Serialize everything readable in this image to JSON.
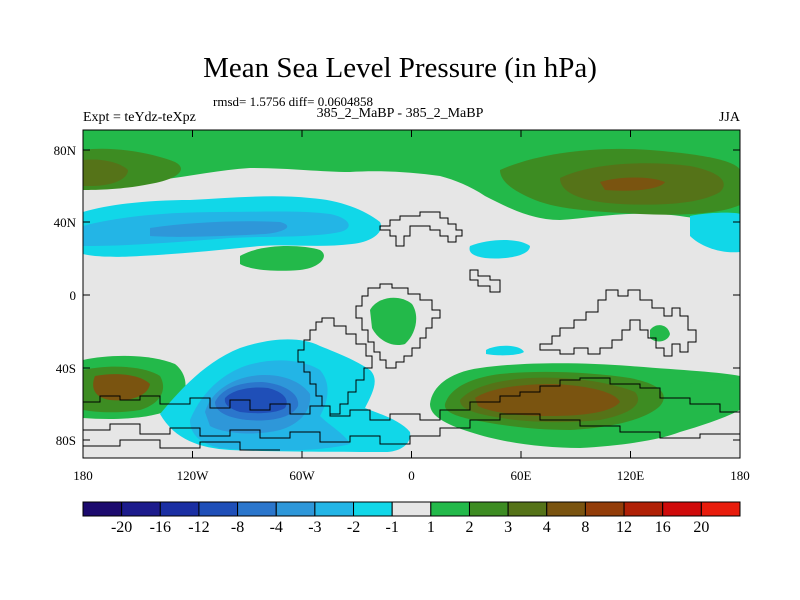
{
  "title": "Mean Sea Level Pressure (in hPa)",
  "stats": "rmsd= 1.5756 diff= 0.0604858",
  "experiment": "Expt = teYdz-teXpz",
  "comparison": "385_2_MaBP - 385_2_MaBP",
  "season": "JJA",
  "lat_ticks": [
    "80N",
    "40N",
    "0",
    "40S",
    "80S"
  ],
  "lon_ticks": [
    "180",
    "120W",
    "60W",
    "0",
    "60E",
    "120E",
    "180"
  ],
  "colorbar": {
    "labels": [
      "-20",
      "-16",
      "-12",
      "-8",
      "-4",
      "-3",
      "-2",
      "-1",
      "1",
      "2",
      "3",
      "4",
      "8",
      "12",
      "16",
      "20"
    ],
    "colors": [
      "#1c0a6e",
      "#1c1b8c",
      "#1b2fa3",
      "#1f4fb8",
      "#2b76cc",
      "#2e97d9",
      "#23b5e6",
      "#11d7e8",
      "#e6e6e6",
      "#23b94a",
      "#3d8c22",
      "#557318",
      "#7a5410",
      "#933d09",
      "#b02006",
      "#cf0a0a",
      "#e81c0c"
    ]
  },
  "palette": {
    "neutral": "#e6e6e6",
    "green": "#23b94a",
    "dkgreen": "#3d8c22",
    "olive": "#557318",
    "brown": "#7a5410",
    "cyan": "#11d7e8",
    "ltblue": "#23b5e6",
    "blue": "#2e97d9",
    "mblue": "#2b76cc",
    "dblue": "#1f4fb8",
    "ddblue": "#1b2fa3"
  }
}
